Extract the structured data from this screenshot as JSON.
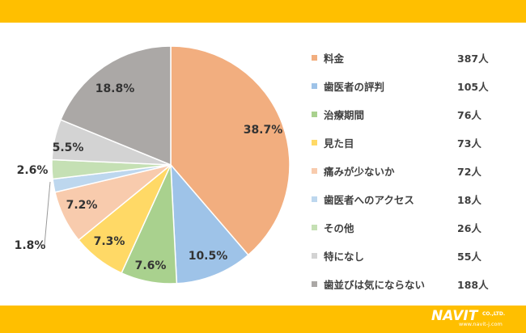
{
  "colors": {
    "band": "#FFBF00"
  },
  "chart_data": {
    "type": "pie",
    "categories": [
      "料金",
      "歯医者の評判",
      "治療期間",
      "見た目",
      "痛みが少ないか",
      "歯医者へのアクセス",
      "その他",
      "特になし",
      "歯並びは気にならない"
    ],
    "counts": [
      "387人",
      "105人",
      "76人",
      "73人",
      "72人",
      "18人",
      "26人",
      "55人",
      "188人"
    ],
    "values": [
      38.7,
      10.5,
      7.6,
      7.3,
      7.2,
      1.8,
      2.6,
      5.5,
      18.8
    ],
    "labels": [
      "38.7%",
      "10.5%",
      "7.6%",
      "7.3%",
      "7.2%",
      "1.8%",
      "2.6%",
      "5.5%",
      "18.8%"
    ],
    "colors": [
      "#F2AE7F",
      "#9EC3E8",
      "#A9D18E",
      "#FFD966",
      "#F8CBAD",
      "#BDD7EE",
      "#C5E0B4",
      "#D3D3D3",
      "#ABA8A6"
    ],
    "legend_position": "right"
  },
  "logo": {
    "main": "NAVIT",
    "company": "CO.,LTD.",
    "url": "www.navit-j.com"
  }
}
